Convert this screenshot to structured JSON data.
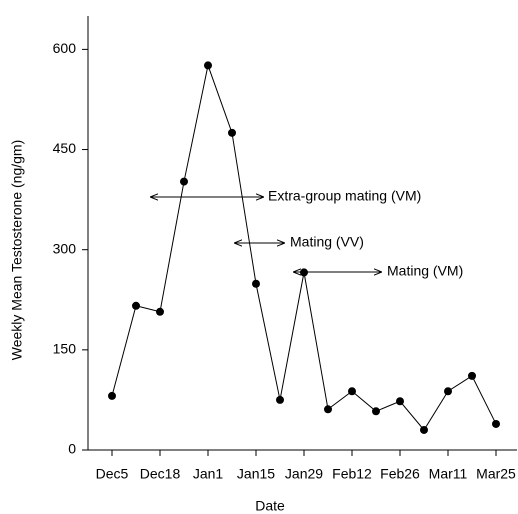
{
  "chart_data": {
    "type": "line",
    "x_label": "Date",
    "y_label": "Weekly Mean Testosterone (ng/gm)",
    "categories": [
      "Dec5",
      null,
      "Dec18",
      null,
      "Jan1",
      null,
      "Jan15",
      null,
      "Jan29",
      null,
      "Feb12",
      null,
      "Feb26",
      null,
      "Mar11",
      null,
      "Mar25"
    ],
    "values": [
      81,
      216,
      207,
      402,
      576,
      475,
      249,
      75,
      266,
      61,
      88,
      58,
      73,
      30,
      88,
      111,
      39
    ],
    "color": "#000000",
    "ylim": [
      0,
      650
    ],
    "yticks": [
      0,
      150,
      300,
      450,
      600
    ],
    "annotations": [
      "Extra-group mating (VM)",
      "Mating (VV)",
      "Mating (VM)"
    ]
  }
}
